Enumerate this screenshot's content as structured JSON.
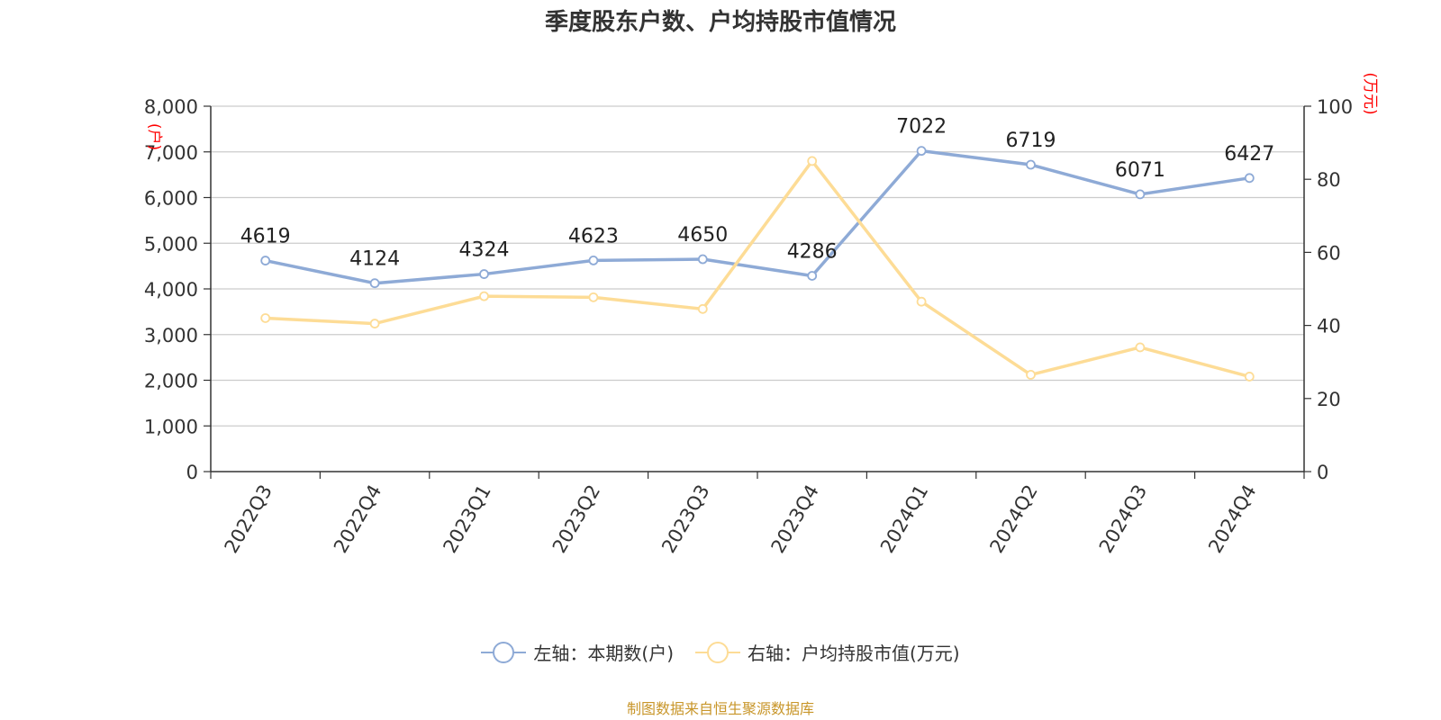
{
  "title": "季度股东户数、户均持股市值情况",
  "source": "制图数据来自恒生聚源数据库",
  "colors": {
    "left": "#8eaad6",
    "right": "#fddc96",
    "axis_unit": "#ff0000",
    "grid": "#cccccc",
    "axis": "#333333"
  },
  "chart_data": {
    "type": "line",
    "title": "季度股东户数、户均持股市值情况",
    "categories": [
      "2022Q3",
      "2022Q4",
      "2023Q1",
      "2023Q2",
      "2023Q3",
      "2023Q4",
      "2024Q1",
      "2024Q2",
      "2024Q3",
      "2024Q4"
    ],
    "left_axis": {
      "unit": "(户)",
      "min": 0,
      "max": 8000,
      "ticks": [
        "0",
        "1,000",
        "2,000",
        "3,000",
        "4,000",
        "5,000",
        "6,000",
        "7,000",
        "8,000"
      ]
    },
    "right_axis": {
      "unit": "(万元)",
      "min": 0,
      "max": 100,
      "ticks": [
        "0",
        "20",
        "40",
        "60",
        "80",
        "100"
      ]
    },
    "grid": true,
    "legend_position": "bottom",
    "series": [
      {
        "name": "左轴：本期数(户)",
        "axis": "left",
        "show_labels": true,
        "values": [
          4619,
          4124,
          4324,
          4623,
          4650,
          4286,
          7022,
          6719,
          6071,
          6427
        ]
      },
      {
        "name": "右轴：户均持股市值(万元)",
        "axis": "right",
        "show_labels": false,
        "values": [
          42,
          40.5,
          48,
          47.7,
          44.5,
          85,
          46.5,
          26.5,
          34,
          26
        ]
      }
    ]
  }
}
